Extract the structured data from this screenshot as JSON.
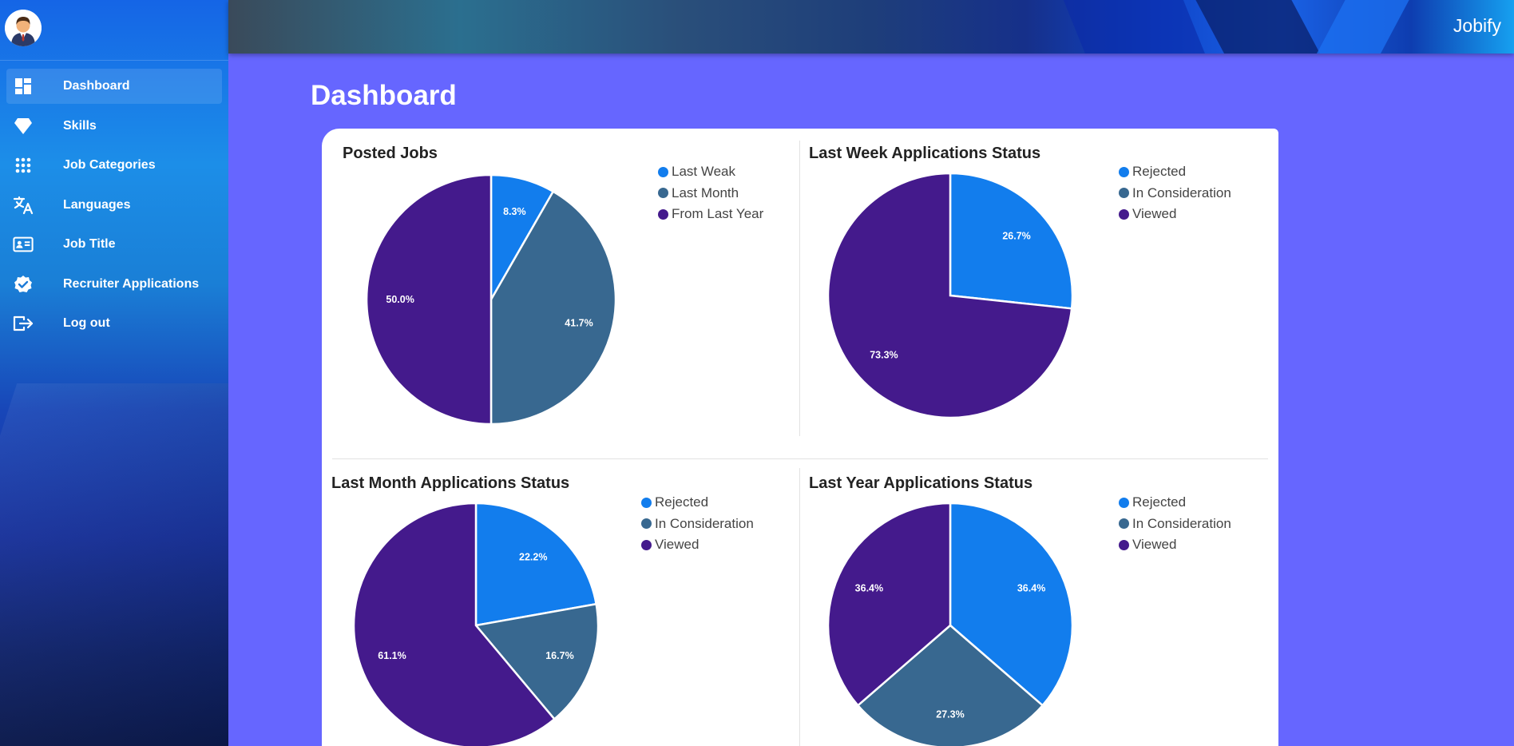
{
  "app": {
    "brand": "Jobify"
  },
  "page": {
    "title": "Dashboard"
  },
  "sidebar": {
    "avatar_icon": "user-avatar-icon",
    "items": [
      {
        "label": "Dashboard",
        "icon": "dashboard-icon",
        "active": true
      },
      {
        "label": "Skills",
        "icon": "diamond-icon"
      },
      {
        "label": "Job Categories",
        "icon": "apps-grid-icon"
      },
      {
        "label": "Languages",
        "icon": "translate-icon"
      },
      {
        "label": "Job Title",
        "icon": "id-card-icon"
      },
      {
        "label": "Recruiter Applications",
        "icon": "verified-badge-icon"
      },
      {
        "label": "Log out",
        "icon": "logout-icon"
      }
    ]
  },
  "colors": {
    "blue": "#127ded",
    "slate": "#386890",
    "purple": "#441a8c",
    "page_bg": "#6666ff"
  },
  "chart_data": [
    {
      "type": "pie",
      "title": "Posted Jobs",
      "labels": [
        "Last Weak",
        "Last Month",
        "From Last Year"
      ],
      "values": [
        8.3,
        41.7,
        50.0
      ],
      "data_labels": [
        "8.3%",
        "41.7%",
        "50.0%"
      ],
      "colors": [
        "#127ded",
        "#386890",
        "#441a8c"
      ],
      "legend": "right"
    },
    {
      "type": "pie",
      "title": "Last Week Applications Status",
      "labels": [
        "Rejected",
        "In Consideration",
        "Viewed"
      ],
      "values": [
        26.7,
        0,
        73.3
      ],
      "data_labels": [
        "26.7%",
        "",
        "73.3%"
      ],
      "colors": [
        "#127ded",
        "#386890",
        "#441a8c"
      ],
      "legend": "right"
    },
    {
      "type": "pie",
      "title": "Last Month Applications Status",
      "labels": [
        "Rejected",
        "In Consideration",
        "Viewed"
      ],
      "values": [
        22.2,
        16.7,
        61.1
      ],
      "data_labels": [
        "22.2%",
        "16.7%",
        "61.1%"
      ],
      "colors": [
        "#127ded",
        "#386890",
        "#441a8c"
      ],
      "legend": "right"
    },
    {
      "type": "pie",
      "title": "Last Year Applications Status",
      "labels": [
        "Rejected",
        "In Consideration",
        "Viewed"
      ],
      "values": [
        36.4,
        27.3,
        36.4
      ],
      "data_labels": [
        "36.4%",
        "27.3%",
        "36.4%"
      ],
      "colors": [
        "#127ded",
        "#386890",
        "#441a8c"
      ],
      "legend": "right"
    }
  ]
}
